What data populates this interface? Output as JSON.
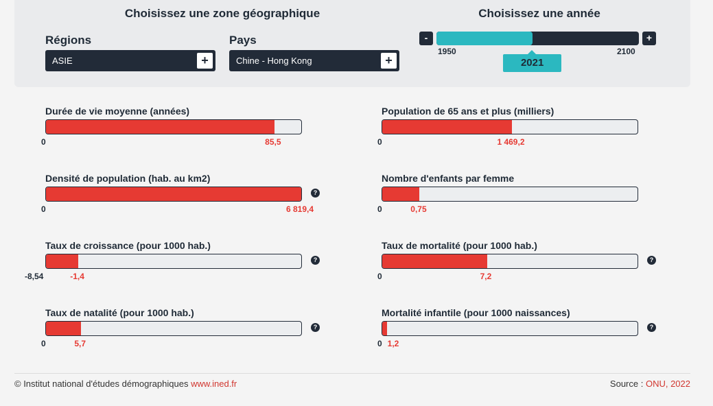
{
  "zone_title": "Choisissez une zone géographique",
  "year_title": "Choisissez une année",
  "regions": {
    "label": "Régions",
    "value": "ASIE",
    "plus": "+"
  },
  "pays": {
    "label": "Pays",
    "value": "Chine - Hong Kong",
    "plus": "+"
  },
  "year_slider": {
    "minus": "-",
    "plus": "+",
    "min": "1950",
    "max": "2100",
    "current": "2021",
    "min_year": 1950,
    "max_year": 2100,
    "current_year": 2021
  },
  "metrics": [
    {
      "label": "Durée de vie moyenne (années)",
      "min": "0",
      "value": "85,5",
      "fill": 0.894,
      "help": false
    },
    {
      "label": "Population de 65 ans et plus (milliers)",
      "min": "0",
      "value": "1 469,2",
      "fill": 0.508,
      "help": false
    },
    {
      "label": "Densité de population (hab. au km2)",
      "min": "0",
      "value": "6 819,4",
      "fill": 1.0,
      "help": true
    },
    {
      "label": "Nombre d'enfants par femme",
      "min": "0",
      "value": "0,75",
      "fill": 0.145,
      "help": false
    },
    {
      "label": "Taux de croissance (pour 1000 hab.)",
      "min": "-8,54",
      "value": "-1,4",
      "fill": 0.126,
      "help": true
    },
    {
      "label": "Taux de mortalité (pour 1000 hab.)",
      "min": "0",
      "value": "7,2",
      "fill": 0.41,
      "help": true
    },
    {
      "label": "Taux de natalité (pour 1000 hab.)",
      "min": "0",
      "value": "5,7",
      "fill": 0.137,
      "help": true
    },
    {
      "label": "Mortalité infantile (pour 1000 naissances)",
      "min": "0",
      "value": "1,2",
      "fill": 0.018,
      "help": true
    }
  ],
  "help_icon": "?",
  "footer": {
    "left_text": "© Institut national d'études démographiques ",
    "left_link": "www.ined.fr",
    "right_text": "Source : ",
    "right_link": "ONU, 2022"
  },
  "colors": {
    "accent": "#e63a33",
    "dark": "#222b38",
    "teal": "#2bb8c0"
  }
}
